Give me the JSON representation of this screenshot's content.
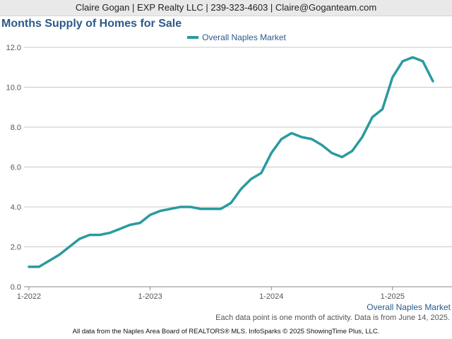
{
  "header": {
    "contact": "Claire Gogan | EXP Realty LLC | 239-323-4603 | Claire@Goganteam.com"
  },
  "chart_data": {
    "type": "line",
    "title": "Months Supply of Homes for Sale",
    "xlabel": "",
    "ylabel": "",
    "ylim": [
      0,
      12
    ],
    "y_ticks": [
      "0.0",
      "2.0",
      "4.0",
      "6.0",
      "8.0",
      "10.0",
      "12.0"
    ],
    "x_tick_labels": [
      "1-2022",
      "1-2023",
      "1-2024",
      "1-2025"
    ],
    "grid": true,
    "legend_position": "top",
    "x": [
      "1-2022",
      "2-2022",
      "3-2022",
      "4-2022",
      "5-2022",
      "6-2022",
      "7-2022",
      "8-2022",
      "9-2022",
      "10-2022",
      "11-2022",
      "12-2022",
      "1-2023",
      "2-2023",
      "3-2023",
      "4-2023",
      "5-2023",
      "6-2023",
      "7-2023",
      "8-2023",
      "9-2023",
      "10-2023",
      "11-2023",
      "12-2023",
      "1-2024",
      "2-2024",
      "3-2024",
      "4-2024",
      "5-2024",
      "6-2024",
      "7-2024",
      "8-2024",
      "9-2024",
      "10-2024",
      "11-2024",
      "12-2024",
      "1-2025",
      "2-2025",
      "3-2025",
      "4-2025",
      "5-2025"
    ],
    "series": [
      {
        "name": "Overall Naples Market",
        "color": "#2a9a9f",
        "values": [
          1.0,
          1.0,
          1.3,
          1.6,
          2.0,
          2.4,
          2.6,
          2.6,
          2.7,
          2.9,
          3.1,
          3.2,
          3.6,
          3.8,
          3.9,
          4.0,
          4.0,
          3.9,
          3.9,
          3.9,
          4.2,
          4.9,
          5.4,
          5.7,
          6.7,
          7.4,
          7.7,
          7.5,
          7.4,
          7.1,
          6.7,
          6.5,
          6.8,
          7.5,
          8.5,
          8.9,
          10.5,
          11.3,
          11.5,
          11.3,
          10.3
        ]
      }
    ]
  },
  "notes": {
    "activity": "Each data point is one month of activity. Data is from June 14, 2025."
  },
  "footer": {
    "source": "All data from the Naples Area Board of REALTORS® MLS. InfoSparks © 2025 ShowingTime Plus, LLC."
  }
}
